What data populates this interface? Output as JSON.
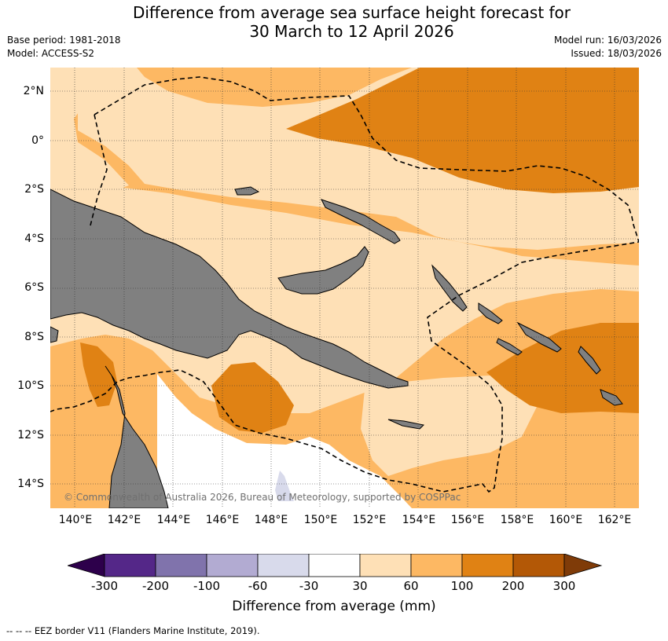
{
  "header": {
    "title_line1": "Difference from average sea surface height forecast for",
    "title_line2": "30 March to 12 April 2026",
    "base_period": "Base period: 1981-2018",
    "model": "Model: ACCESS-S2",
    "model_run": "Model run: 16/03/2026",
    "issued": "Issued: 18/03/2026"
  },
  "map": {
    "lat_labels": [
      "2°N",
      "0°",
      "2°S",
      "4°S",
      "6°S",
      "8°S",
      "10°S",
      "12°S",
      "14°S"
    ],
    "lon_labels": [
      "140°E",
      "142°E",
      "144°E",
      "146°E",
      "148°E",
      "150°E",
      "152°E",
      "154°E",
      "156°E",
      "158°E",
      "160°E",
      "162°E"
    ],
    "copyright": "© Commonwealth of Australia 2026, Bureau of Meteorology, supported by COSPPac",
    "colors": {
      "land": "#808080",
      "c30_60": "#fee0b6",
      "c60_100": "#fdb863",
      "c100_200": "#e08214",
      "cm60_m30": "#d8daeb"
    }
  },
  "colorbar": {
    "label": "Difference from average (mm)",
    "ticks": [
      "-300",
      "-200",
      "-100",
      "-60",
      "-30",
      "30",
      "60",
      "100",
      "200",
      "300"
    ],
    "colors": [
      "#2d004b",
      "#542788",
      "#8073ac",
      "#b2abd2",
      "#d8daeb",
      "#ffffff",
      "#fee0b6",
      "#fdb863",
      "#e08214",
      "#b35806",
      "#7f3b08"
    ]
  },
  "footnote": "--  --  -- EEZ border V11 (Flanders Marine Institute, 2019)."
}
